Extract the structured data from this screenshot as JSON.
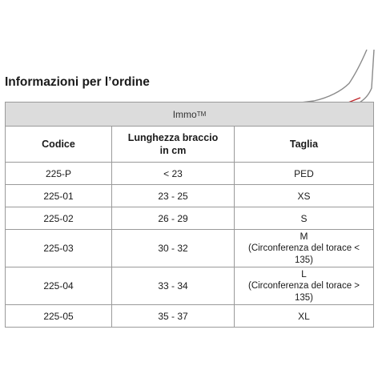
{
  "title": "Informazioni per l’ordine",
  "product": {
    "name": "Immo",
    "mark": "TM"
  },
  "table": {
    "headers": {
      "code": "Codice",
      "arm_length_l1": "Lunghezza braccio",
      "arm_length_l2": "in cm",
      "size": "Taglia"
    },
    "rows": [
      {
        "code": "225-P",
        "length": "< 23",
        "size": "PED",
        "note": ""
      },
      {
        "code": "225-01",
        "length": "23 - 25",
        "size": "XS",
        "note": ""
      },
      {
        "code": "225-02",
        "length": "26 - 29",
        "size": "S",
        "note": ""
      },
      {
        "code": "225-03",
        "length": "30 - 32",
        "size": "M",
        "note": "(Circonferenza del torace < 135)"
      },
      {
        "code": "225-04",
        "length": "33 - 34",
        "size": "L",
        "note": "(Circonferenza del torace > 135)"
      },
      {
        "code": "225-05",
        "length": "35 - 37",
        "size": "XL",
        "note": ""
      }
    ]
  },
  "illustration": {
    "icon": "arm-measurement-icon",
    "arrow_color": "#c0282d",
    "line_color": "#8a8a8a"
  }
}
